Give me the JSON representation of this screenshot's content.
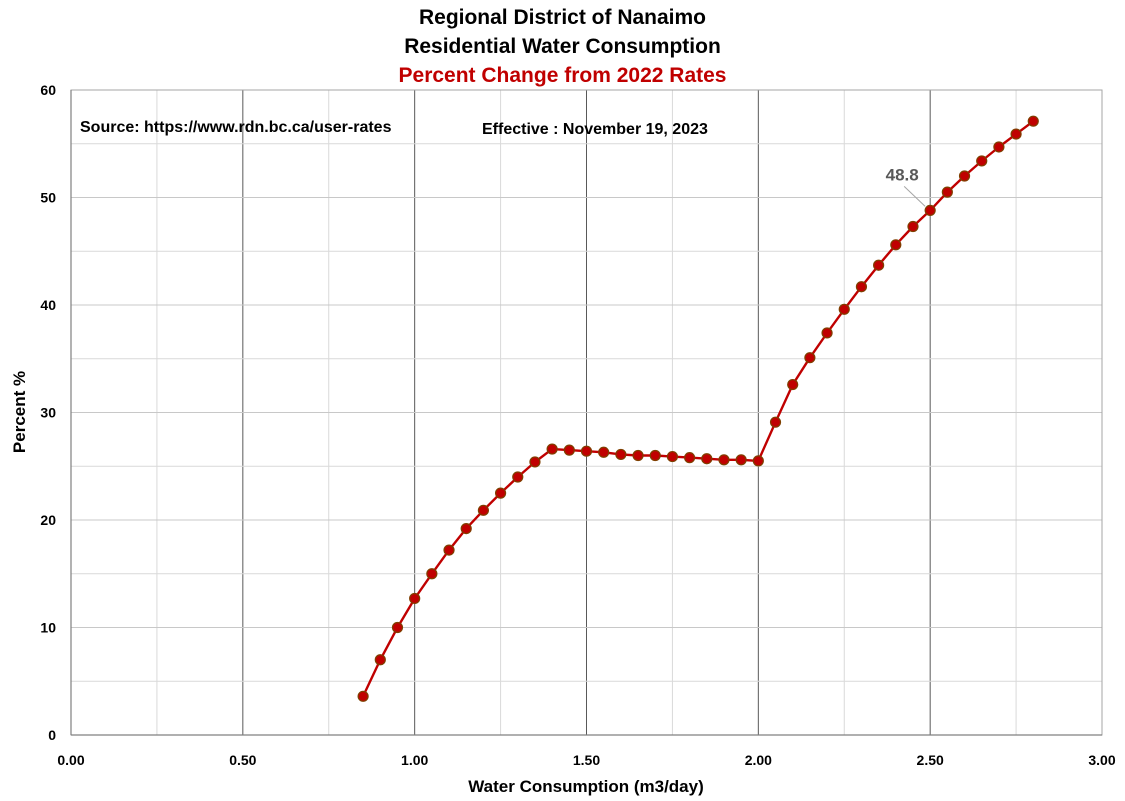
{
  "chart_data": {
    "type": "line",
    "title": "Regional District of Nanaimo",
    "subtitle": "Residential Water Consumption",
    "subtitle2": "Percent Change from 2022 Rates",
    "xlabel": "Water Consumption (m3/day)",
    "ylabel": "Percent %",
    "xlim": [
      0,
      3
    ],
    "ylim": [
      0,
      60
    ],
    "x_ticks": [
      "0.00",
      "0.50",
      "1.00",
      "1.50",
      "2.00",
      "2.50",
      "3.00"
    ],
    "y_ticks": [
      "0",
      "10",
      "20",
      "30",
      "40",
      "50",
      "60"
    ],
    "grid": true,
    "annotations": {
      "source": "Source: https://www.rdn.bc.ca/user-rates",
      "effective": "Effective : November 19, 2023"
    },
    "data_label": {
      "x": 2.5,
      "y": 48.8,
      "text": "48.8"
    },
    "series": [
      {
        "x": [
          0.85,
          0.9,
          0.95,
          1.0,
          1.05,
          1.1,
          1.15,
          1.2,
          1.25,
          1.3,
          1.35,
          1.4,
          1.45,
          1.5,
          1.55,
          1.6,
          1.65,
          1.7,
          1.75,
          1.8,
          1.85,
          1.9,
          1.95,
          2.0,
          2.05,
          2.1,
          2.15,
          2.2,
          2.25,
          2.3,
          2.35,
          2.4,
          2.45,
          2.5,
          2.55,
          2.6,
          2.65,
          2.7,
          2.75,
          2.8
        ],
        "y": [
          3.6,
          7.0,
          10.0,
          12.7,
          15.0,
          17.2,
          19.2,
          20.9,
          22.5,
          24.0,
          25.4,
          26.6,
          26.5,
          26.4,
          26.3,
          26.1,
          26.0,
          26.0,
          25.9,
          25.8,
          25.7,
          25.6,
          25.6,
          25.5,
          29.1,
          32.6,
          35.1,
          37.4,
          39.6,
          41.7,
          43.7,
          45.6,
          47.3,
          48.8,
          50.5,
          52.0,
          53.4,
          54.7,
          55.9,
          57.1
        ]
      }
    ],
    "colors": {
      "line": "#c00000",
      "marker_fill": "#c00000",
      "marker_edge": "#7f3f00",
      "subtitle2": "#c00000",
      "major_grid": "#595959",
      "minor_grid": "#d9d9d9",
      "data_label": "#595959"
    }
  }
}
